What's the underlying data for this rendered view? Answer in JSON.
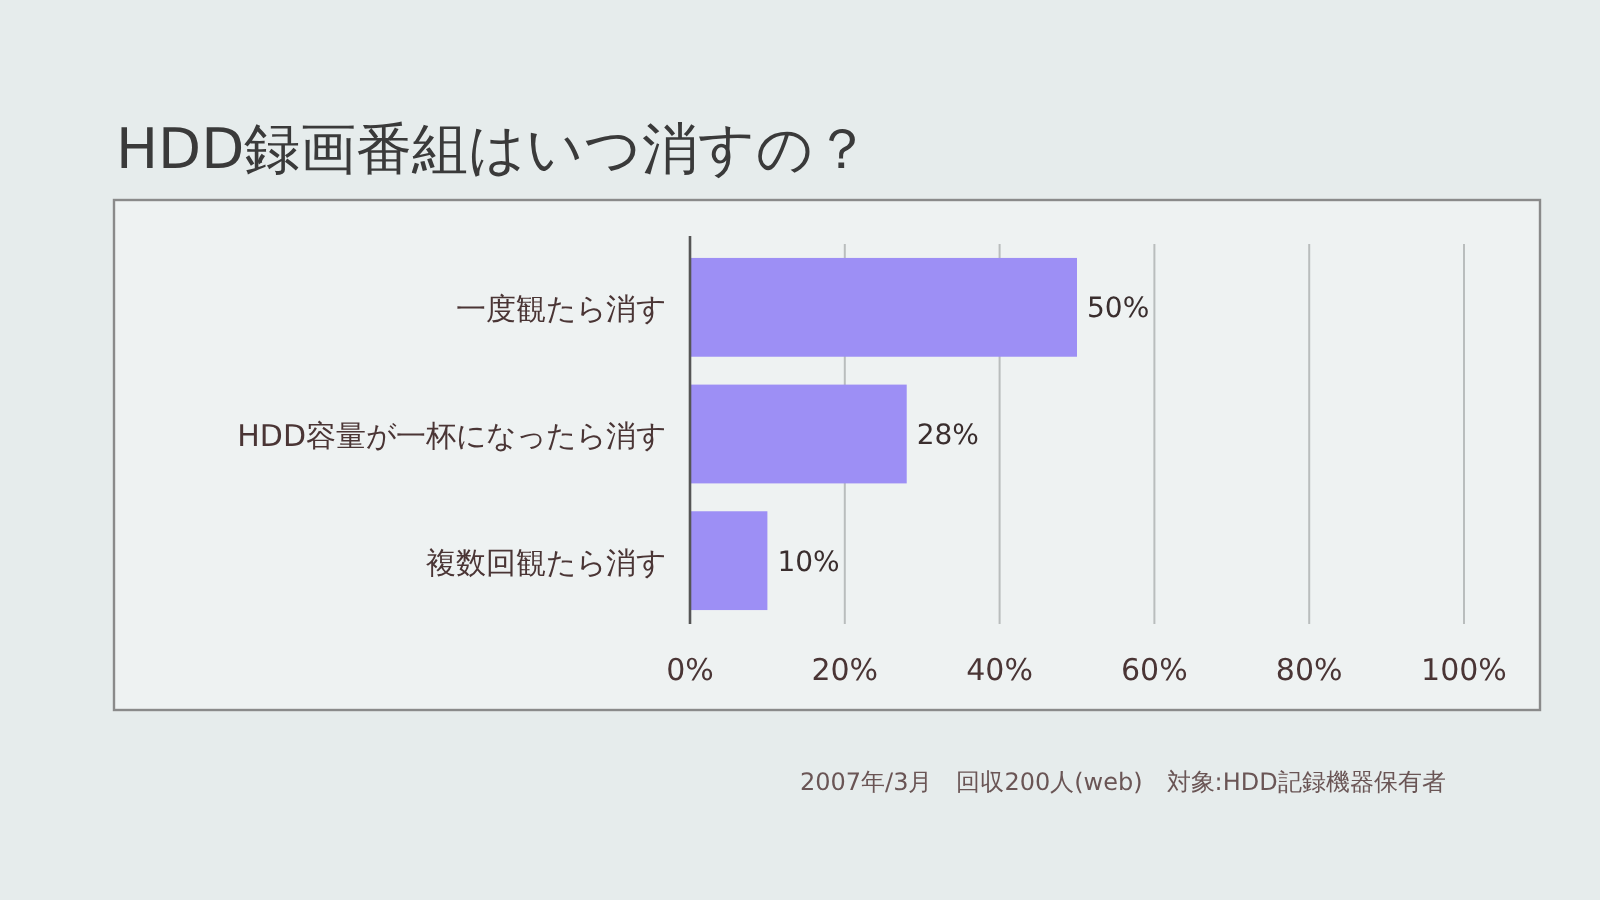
{
  "chart_data": {
    "type": "bar",
    "orientation": "horizontal",
    "title": "HDD録画番組はいつ消すの？",
    "categories": [
      "一度観たら消す",
      "HDD容量が一杯になったら消す",
      "複数回観たら消す"
    ],
    "values": [
      50,
      28,
      10
    ],
    "value_labels": [
      "50%",
      "28%",
      "10%"
    ],
    "color": "#9d8ff5",
    "xlim": [
      0,
      100
    ],
    "xticks": [
      {
        "value": 0,
        "label": "0%"
      },
      {
        "value": 20,
        "label": "20%"
      },
      {
        "value": 40,
        "label": "40%"
      },
      {
        "value": 60,
        "label": "60%"
      },
      {
        "value": 80,
        "label": "80%"
      },
      {
        "value": 100,
        "label": "100%"
      }
    ],
    "grid": "x",
    "annotations": [
      "2007年/3月　回収200人(web)　対象:HDD記録機器保有者"
    ]
  }
}
